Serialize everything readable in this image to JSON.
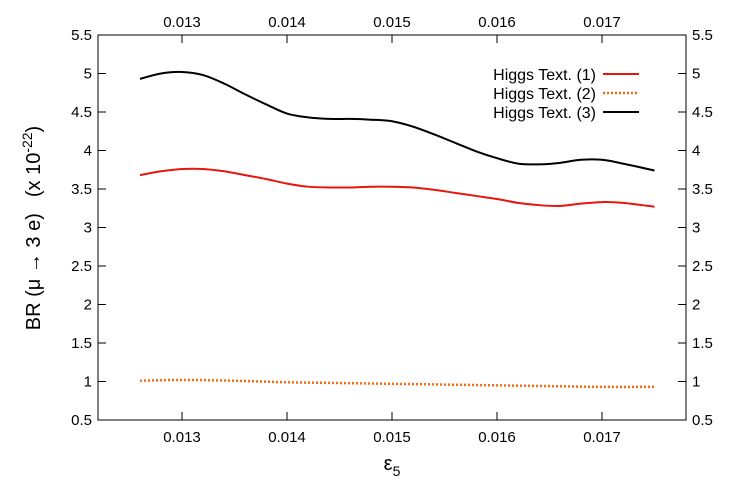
{
  "chart_data": {
    "type": "line",
    "xlabel": "ε",
    "xlabel_subscript": "5",
    "ylabel_main": "BR (μ → 3 e)",
    "ylabel_factor_prefix": "(x 10",
    "ylabel_factor_exponent": "-22",
    "ylabel_factor_suffix": ")",
    "xlim": [
      0.0122,
      0.0178
    ],
    "ylim": [
      0.5,
      5.5
    ],
    "x_ticks": [
      0.013,
      0.014,
      0.015,
      0.016,
      0.017
    ],
    "x_tick_labels": [
      "0.013",
      "0.014",
      "0.015",
      "0.016",
      "0.017"
    ],
    "y_ticks": [
      0.5,
      1,
      1.5,
      2,
      2.5,
      3,
      3.5,
      4,
      4.5,
      5,
      5.5
    ],
    "y_tick_labels": [
      "0.5",
      "1",
      "1.5",
      "2",
      "2.5",
      "3",
      "3.5",
      "4",
      "4.5",
      "5",
      "5.5"
    ],
    "mirror_axes": true,
    "grid": false,
    "legend_position": "top-right",
    "series": [
      {
        "name": "Higgs Text. (1)",
        "color": "#e8150f",
        "style": "solid",
        "x": [
          0.0126,
          0.0128,
          0.013,
          0.0132,
          0.0134,
          0.0136,
          0.0138,
          0.014,
          0.0142,
          0.0144,
          0.0146,
          0.0148,
          0.015,
          0.0152,
          0.0154,
          0.0156,
          0.0158,
          0.016,
          0.0162,
          0.0164,
          0.0166,
          0.0168,
          0.017,
          0.0172,
          0.0175
        ],
        "values": [
          3.68,
          3.73,
          3.76,
          3.76,
          3.73,
          3.68,
          3.63,
          3.57,
          3.53,
          3.52,
          3.52,
          3.53,
          3.53,
          3.52,
          3.49,
          3.45,
          3.41,
          3.37,
          3.32,
          3.29,
          3.28,
          3.31,
          3.33,
          3.32,
          3.27
        ]
      },
      {
        "name": "Higgs Text. (2)",
        "color": "#f26a0f",
        "style": "dotted",
        "x": [
          0.0126,
          0.013,
          0.0135,
          0.014,
          0.0145,
          0.015,
          0.0155,
          0.016,
          0.0165,
          0.017,
          0.0175
        ],
        "values": [
          1.01,
          1.02,
          1.01,
          0.99,
          0.98,
          0.97,
          0.96,
          0.95,
          0.94,
          0.93,
          0.93
        ]
      },
      {
        "name": "Higgs Text. (3)",
        "color": "#000000",
        "style": "solid",
        "x": [
          0.0126,
          0.0128,
          0.013,
          0.0132,
          0.0134,
          0.0136,
          0.0138,
          0.014,
          0.0142,
          0.0144,
          0.0146,
          0.0148,
          0.015,
          0.0152,
          0.0154,
          0.0156,
          0.0158,
          0.016,
          0.0162,
          0.0164,
          0.0166,
          0.0168,
          0.017,
          0.0172,
          0.0175
        ],
        "values": [
          4.93,
          5.0,
          5.02,
          4.98,
          4.87,
          4.73,
          4.6,
          4.48,
          4.43,
          4.41,
          4.41,
          4.4,
          4.38,
          4.31,
          4.21,
          4.1,
          3.99,
          3.9,
          3.83,
          3.82,
          3.84,
          3.88,
          3.88,
          3.83,
          3.74
        ]
      }
    ]
  }
}
